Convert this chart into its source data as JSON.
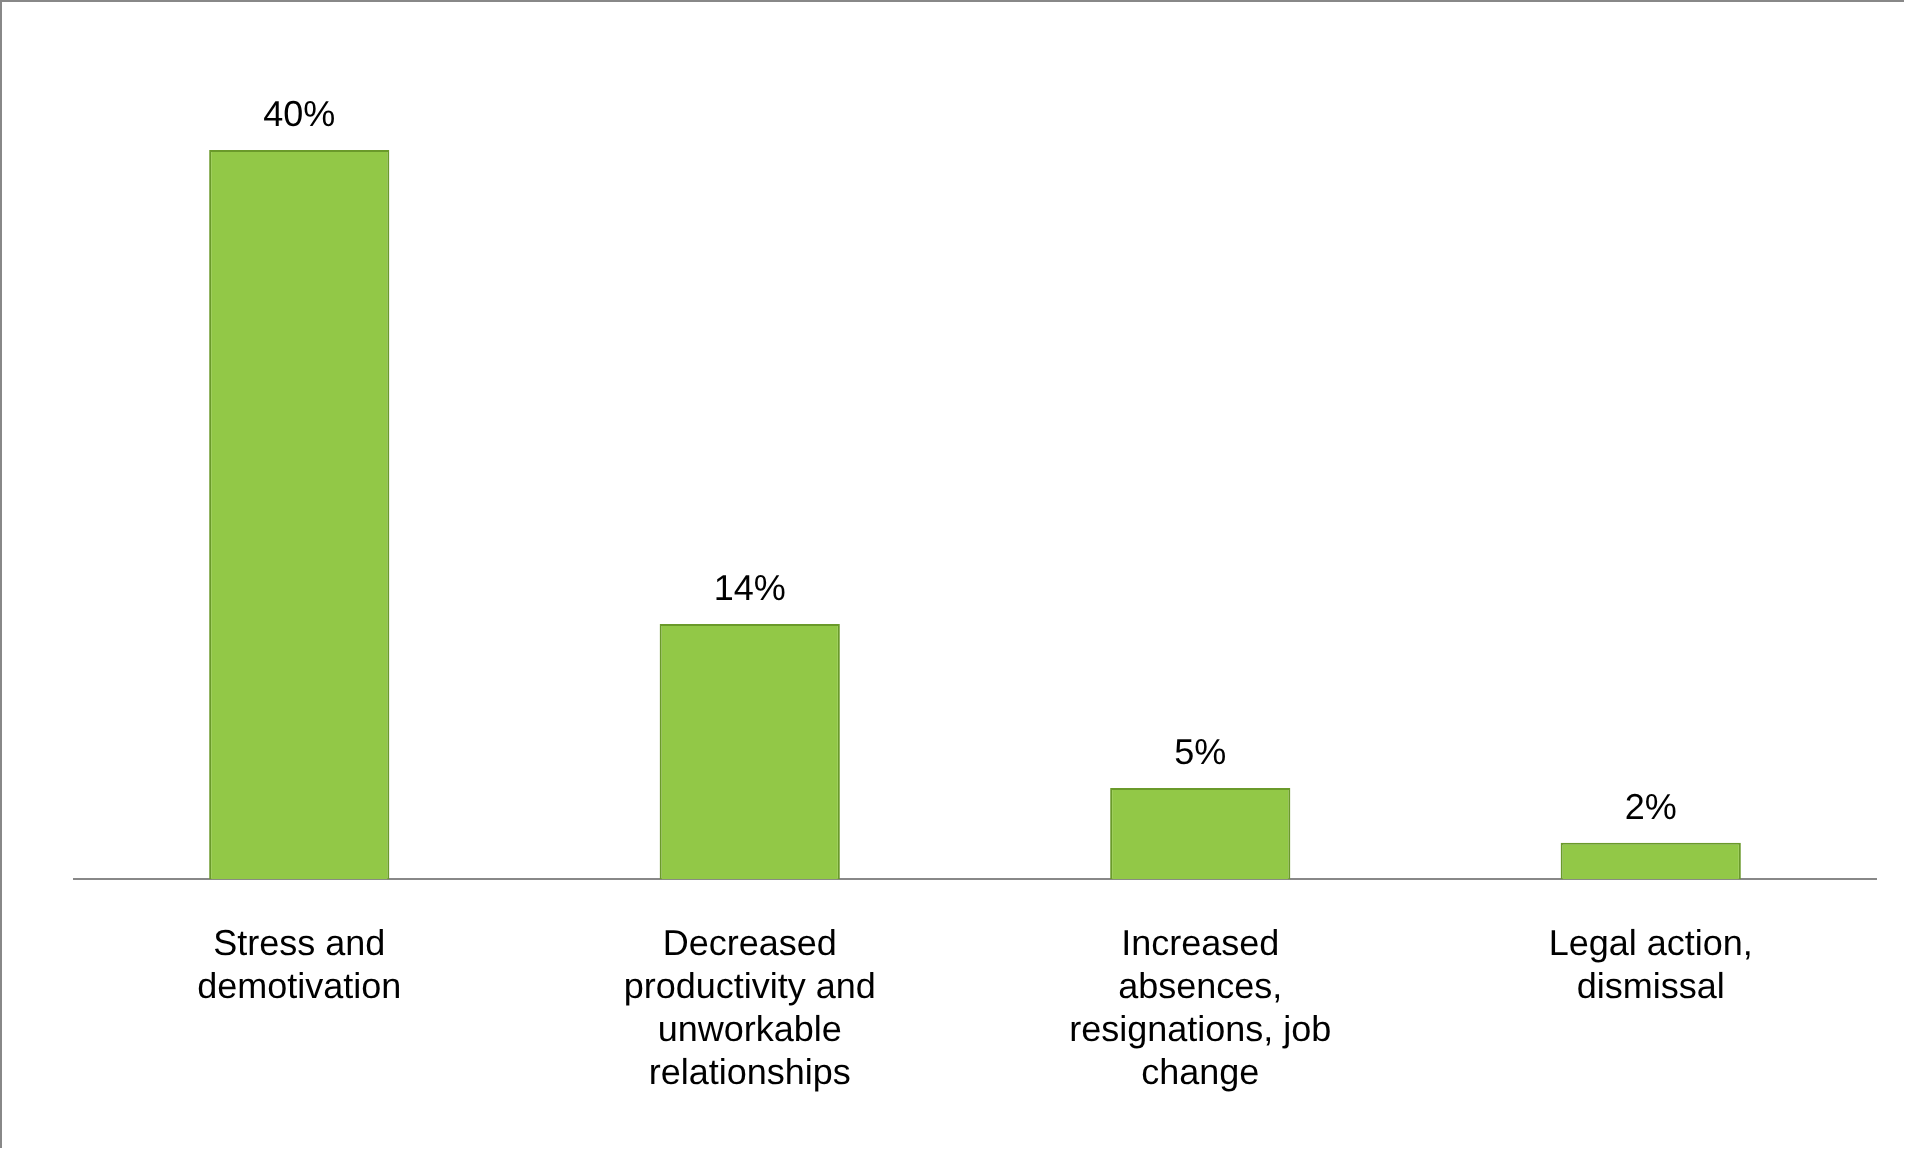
{
  "chart_data": {
    "type": "bar",
    "categories": [
      "Stress and demotivation",
      "Decreased productivity and unworkable relationships",
      "Increased absences, resignations, job change",
      "Legal action, dismissal"
    ],
    "values": [
      40,
      14,
      5,
      2
    ],
    "value_labels": [
      "40%",
      "14%",
      "5%",
      "2%"
    ],
    "color": "#92c847",
    "grid": false,
    "legend": false
  }
}
